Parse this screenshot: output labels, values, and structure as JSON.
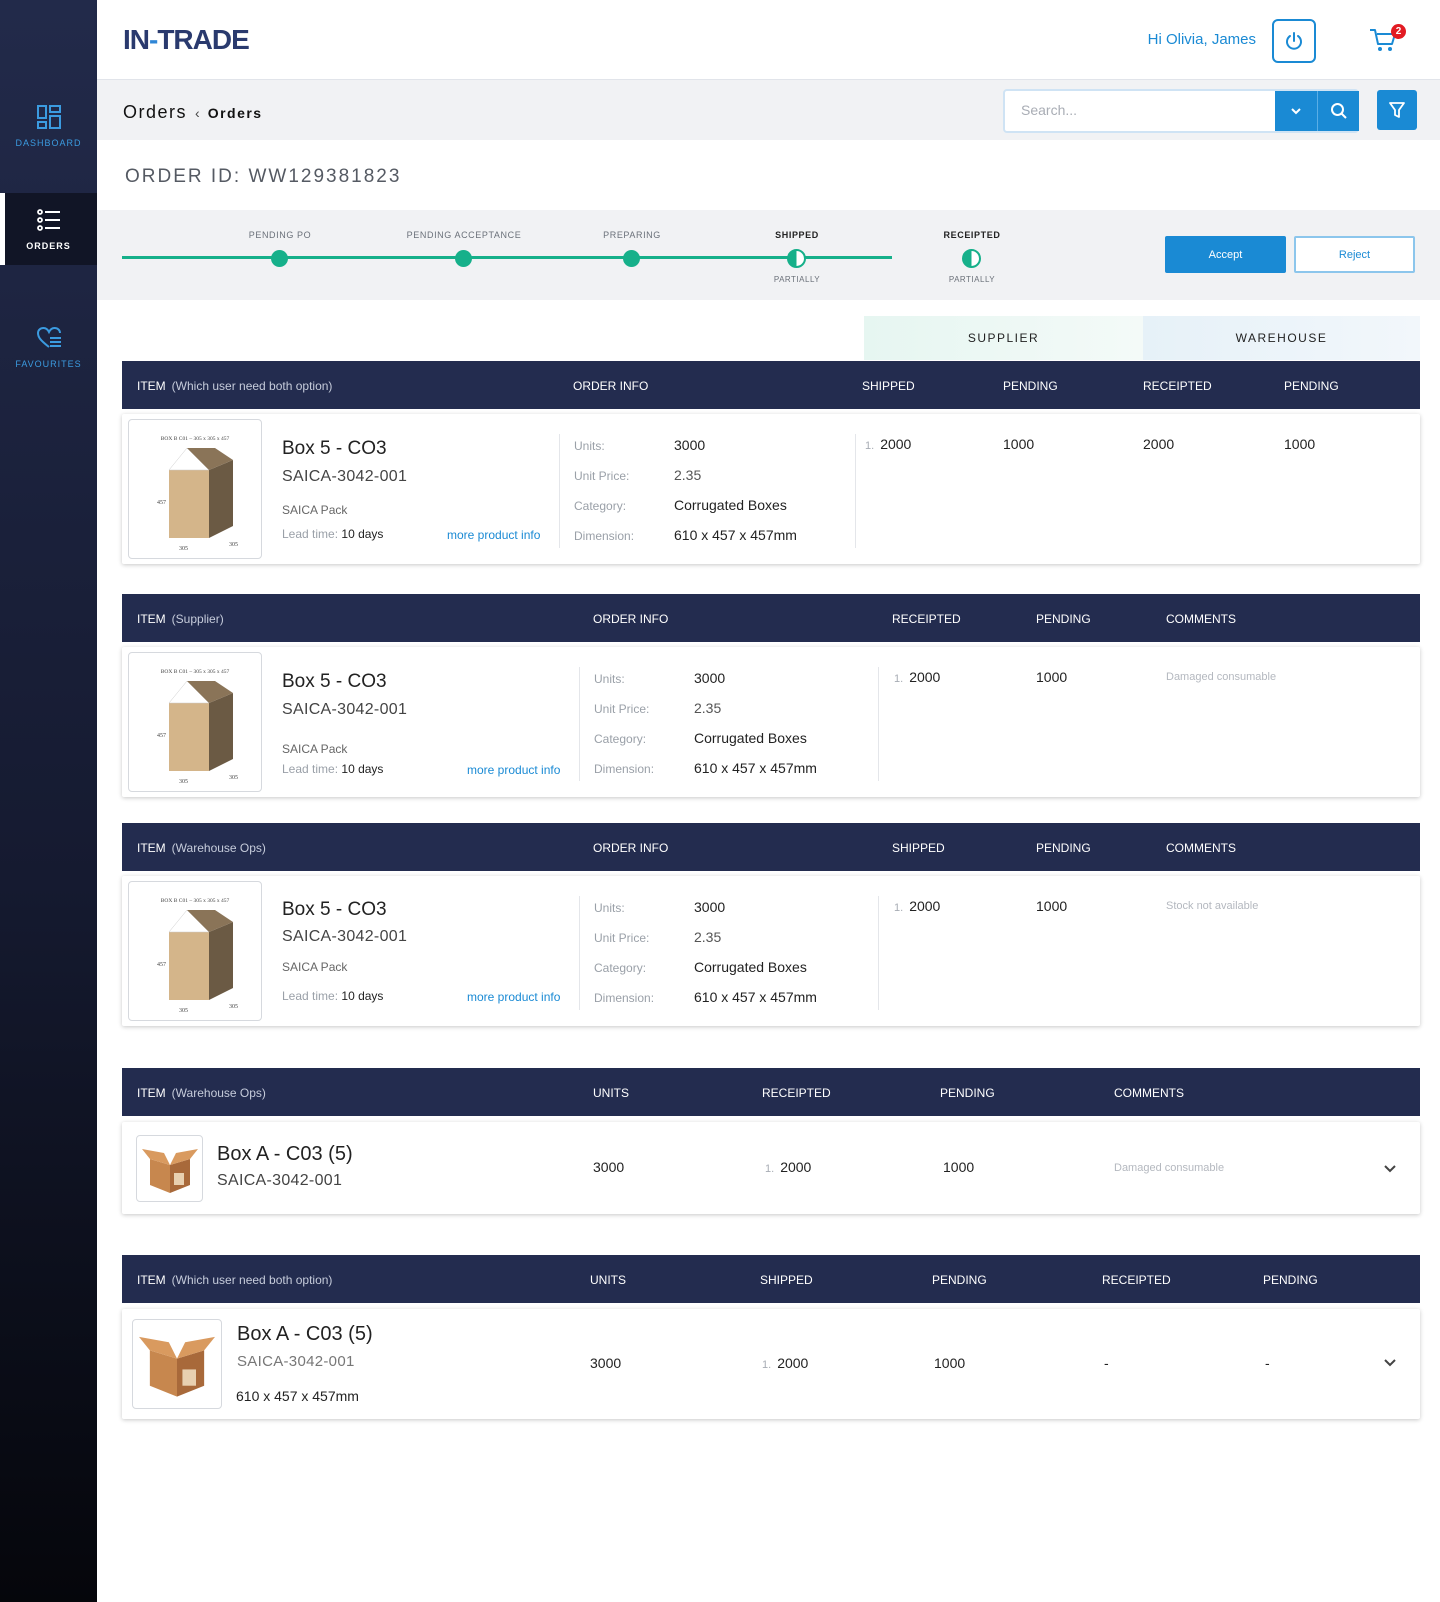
{
  "sidebar": {
    "items": [
      {
        "label": "DASHBOARD",
        "icon": "dashboard-icon"
      },
      {
        "label": "ORDERS",
        "icon": "orders-list-icon"
      },
      {
        "label": "FAVOURITES",
        "icon": "heart-list-icon"
      }
    ]
  },
  "header": {
    "logo_prefix": "IN",
    "logo_accent": "-",
    "logo_suffix": "TRADE",
    "greeting": "Hi Olivia, James",
    "cart_count": "2"
  },
  "subheader": {
    "breadcrumb_main": "Orders",
    "breadcrumb_sep": "‹",
    "breadcrumb_sub": "Orders",
    "search_placeholder": "Search..."
  },
  "order": {
    "id_text": "ORDER ID: WW129381823"
  },
  "progress": {
    "steps": [
      {
        "label": "PENDING PO",
        "sub": ""
      },
      {
        "label": "PENDING ACCEPTANCE",
        "sub": ""
      },
      {
        "label": "PREPARING",
        "sub": ""
      },
      {
        "label": "SHIPPED",
        "sub": "PARTIALLY"
      },
      {
        "label": "RECEIPTED",
        "sub": "PARTIALLY"
      }
    ],
    "accept_label": "Accept",
    "reject_label": "Reject"
  },
  "tabs": {
    "supplier": "SUPPLIER",
    "warehouse": "WAREHOUSE"
  },
  "tables": [
    {
      "headers": {
        "item": "ITEM",
        "item_sub": "(Which user need both option)",
        "c1": "ORDER INFO",
        "c2": "SHIPPED",
        "c3": "PENDING",
        "c4": "RECEIPTED",
        "c5": "PENDING"
      },
      "row": {
        "thumb_caption": "BOX B C01 – 305 x 305 x 457",
        "dim_side": "457",
        "dim_bottom_left": "305",
        "dim_bottom_right": "305",
        "name": "Box 5 - CO3",
        "sku": "SAICA-3042-001",
        "vendor": "SAICA Pack",
        "lead_label": "Lead time:",
        "lead_value": "10 days",
        "more": "more product info",
        "units_label": "Units:",
        "units": "3000",
        "price_label": "Unit Price:",
        "price": "2.35",
        "category_label": "Category:",
        "category": "Corrugated Boxes",
        "dimension_label": "Dimension:",
        "dimension": "610 x 457 x 457mm",
        "idx": "1.",
        "v1": "2000",
        "v2": "1000",
        "v3": "2000",
        "v4": "1000"
      }
    },
    {
      "headers": {
        "item": "ITEM",
        "item_sub": "(Supplier)",
        "c1": "ORDER INFO",
        "c2": "RECEIPTED",
        "c3": "PENDING",
        "c4": "COMMENTS"
      },
      "row": {
        "thumb_caption": "BOX B C01 – 305 x 305 x 457",
        "dim_side": "457",
        "dim_bottom_left": "305",
        "dim_bottom_right": "305",
        "name": "Box 5 - CO3",
        "sku": "SAICA-3042-001",
        "vendor": "SAICA Pack",
        "lead_label": "Lead time:",
        "lead_value": "10 days",
        "more": "more product info",
        "units_label": "Units:",
        "units": "3000",
        "price_label": "Unit Price:",
        "price": "2.35",
        "category_label": "Category:",
        "category": "Corrugated Boxes",
        "dimension_label": "Dimension:",
        "dimension": "610 x 457 x 457mm",
        "idx": "1.",
        "v1": "2000",
        "v2": "1000",
        "comment": "Damaged consumable"
      }
    },
    {
      "headers": {
        "item": "ITEM",
        "item_sub": "(Warehouse Ops)",
        "c1": "ORDER INFO",
        "c2": "SHIPPED",
        "c3": "PENDING",
        "c4": "COMMENTS"
      },
      "row": {
        "thumb_caption": "BOX B C01 – 305 x 305 x 457",
        "dim_side": "457",
        "dim_bottom_left": "305",
        "dim_bottom_right": "305",
        "name": "Box 5 - CO3",
        "sku": "SAICA-3042-001",
        "vendor": "SAICA Pack",
        "lead_label": "Lead time:",
        "lead_value": "10 days",
        "more": "more product info",
        "units_label": "Units:",
        "units": "3000",
        "price_label": "Unit Price:",
        "price": "2.35",
        "category_label": "Category:",
        "category": "Corrugated Boxes",
        "dimension_label": "Dimension:",
        "dimension": "610 x 457 x 457mm",
        "idx": "1.",
        "v1": "2000",
        "v2": "1000",
        "comment": "Stock not available"
      }
    },
    {
      "headers": {
        "item": "ITEM",
        "item_sub": "(Warehouse Ops)",
        "c1": "UNITS",
        "c2": "RECEIPTED",
        "c3": "PENDING",
        "c4": "COMMENTS"
      },
      "row": {
        "name": "Box A - C03 (5)",
        "sku": "SAICA-3042-001",
        "units": "3000",
        "idx": "1.",
        "v1": "2000",
        "v2": "1000",
        "comment": "Damaged consumable"
      }
    },
    {
      "headers": {
        "item": "ITEM",
        "item_sub": "(Which user need both option)",
        "c1": "UNITS",
        "c2": "SHIPPED",
        "c3": "PENDING",
        "c4": "RECEIPTED",
        "c5": "PENDING"
      },
      "row": {
        "name": "Box A - C03 (5)",
        "sku": "SAICA-3042-001",
        "dimension": "610 x 457 x 457mm",
        "units": "3000",
        "idx": "1.",
        "v1": "2000",
        "v2": "1000",
        "v3": "-",
        "v4": "-"
      }
    }
  ],
  "colors": {
    "sidebar_top": "#222a4a",
    "sidebar_bottom": "#05060b",
    "accent_blue": "#1a8ad4",
    "progress_green": "#16b08a",
    "table_header": "#232c4f",
    "cart_badge": "#e21b23"
  }
}
